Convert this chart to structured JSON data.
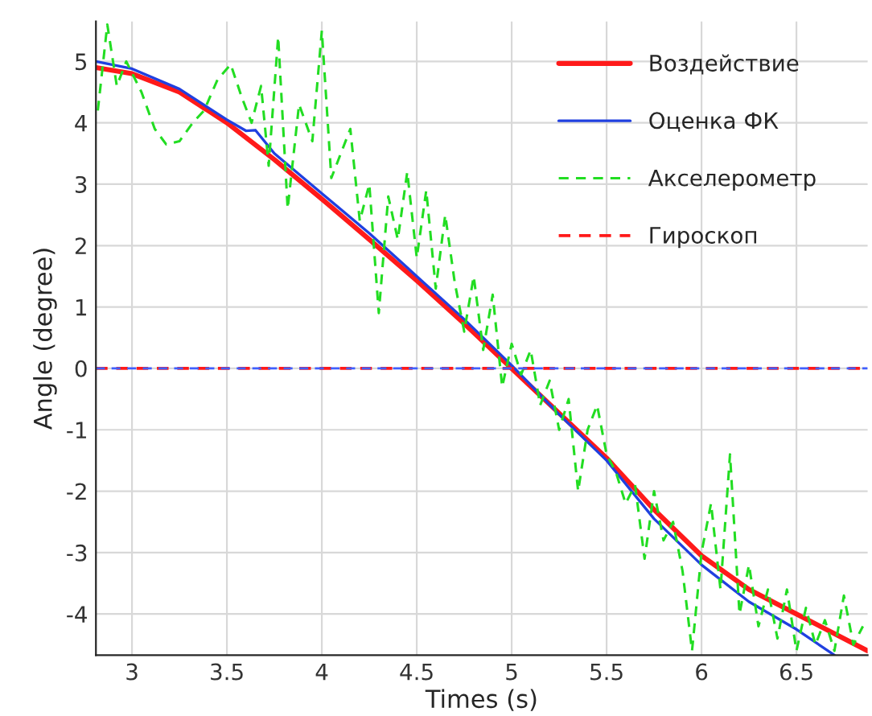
{
  "chart_data": {
    "type": "line",
    "xlabel": "Times (s)",
    "ylabel": "Angle (degree)",
    "xlim": [
      2.81,
      6.875
    ],
    "ylim": [
      -4.67,
      5.65
    ],
    "xticks": [
      3,
      3.5,
      4,
      4.5,
      5,
      5.5,
      6,
      6.5
    ],
    "yticks": [
      -4,
      -3,
      -2,
      -1,
      0,
      1,
      2,
      3,
      4,
      5
    ],
    "grid": true,
    "legend": "top right",
    "series": [
      {
        "name": "Воздействие",
        "color": "#ff1a1a",
        "line_style": "solid",
        "x": [
          2.81,
          3.0,
          3.25,
          3.5,
          3.75,
          4.0,
          4.25,
          4.5,
          4.75,
          5.0,
          5.25,
          5.5,
          5.75,
          6.0,
          6.25,
          6.5,
          6.75,
          6.875
        ],
        "values": [
          4.9,
          4.8,
          4.5,
          4.0,
          3.4,
          2.76,
          2.1,
          1.43,
          0.73,
          0,
          -0.73,
          -1.46,
          -2.3,
          -3.05,
          -3.6,
          -4.0,
          -4.4,
          -4.6
        ]
      },
      {
        "name": "Оценка ФК",
        "color": "#2040e0",
        "line_style": "solid",
        "x": [
          2.81,
          3.0,
          3.25,
          3.5,
          3.6,
          3.65,
          3.75,
          4.0,
          4.25,
          4.5,
          4.75,
          5.0,
          5.25,
          5.5,
          5.75,
          6.0,
          6.25,
          6.5,
          6.7
        ],
        "values": [
          5.0,
          4.88,
          4.55,
          4.05,
          3.87,
          3.88,
          3.5,
          2.85,
          2.2,
          1.5,
          0.8,
          0.05,
          -0.75,
          -1.5,
          -2.45,
          -3.2,
          -3.8,
          -4.25,
          -4.67
        ]
      },
      {
        "name": "Акселерометр",
        "color": "#22dd22",
        "line_style": "dashed",
        "x": [
          2.82,
          2.87,
          2.92,
          2.97,
          3.05,
          3.12,
          3.18,
          3.25,
          3.32,
          3.38,
          3.45,
          3.52,
          3.58,
          3.63,
          3.68,
          3.72,
          3.77,
          3.82,
          3.88,
          3.95,
          4.0,
          4.05,
          4.1,
          4.15,
          4.2,
          4.25,
          4.3,
          4.35,
          4.4,
          4.45,
          4.5,
          4.55,
          4.6,
          4.65,
          4.7,
          4.75,
          4.8,
          4.85,
          4.9,
          4.95,
          5.0,
          5.05,
          5.1,
          5.15,
          5.2,
          5.25,
          5.3,
          5.35,
          5.4,
          5.45,
          5.5,
          5.55,
          5.6,
          5.65,
          5.7,
          5.75,
          5.8,
          5.85,
          5.9,
          5.95,
          6.0,
          6.05,
          6.1,
          6.15,
          6.2,
          6.25,
          6.3,
          6.35,
          6.4,
          6.45,
          6.5,
          6.55,
          6.6,
          6.65,
          6.7,
          6.75,
          6.8,
          6.85
        ],
        "values": [
          4.2,
          5.6,
          4.6,
          5.0,
          4.5,
          3.9,
          3.65,
          3.7,
          4.0,
          4.2,
          4.7,
          4.95,
          4.4,
          4.0,
          4.6,
          3.3,
          5.4,
          2.6,
          4.3,
          3.7,
          5.5,
          3.1,
          3.5,
          3.9,
          2.4,
          3.0,
          0.9,
          2.8,
          2.1,
          3.2,
          1.8,
          2.9,
          1.3,
          2.5,
          1.4,
          0.6,
          1.5,
          0.3,
          1.2,
          -0.3,
          0.4,
          -0.1,
          0.3,
          -0.6,
          -0.2,
          -1.0,
          -0.5,
          -2.0,
          -1.0,
          -0.6,
          -1.4,
          -1.7,
          -2.2,
          -1.9,
          -3.1,
          -2.0,
          -2.8,
          -2.5,
          -3.3,
          -4.6,
          -3.0,
          -2.2,
          -3.6,
          -1.4,
          -4.0,
          -3.2,
          -4.2,
          -3.6,
          -4.4,
          -3.6,
          -4.6,
          -3.9,
          -4.5,
          -4.1,
          -4.6,
          -3.7,
          -4.5,
          -4.2
        ]
      },
      {
        "name": "Гироскоп",
        "color": "#ff1a1a",
        "line_style": "dashed",
        "x": [
          2.81,
          6.875
        ],
        "values": [
          0,
          0
        ]
      },
      {
        "color": "#4060ff",
        "line_style": "dashed",
        "x": [
          2.81,
          6.875
        ],
        "values": [
          0,
          0
        ]
      }
    ]
  }
}
